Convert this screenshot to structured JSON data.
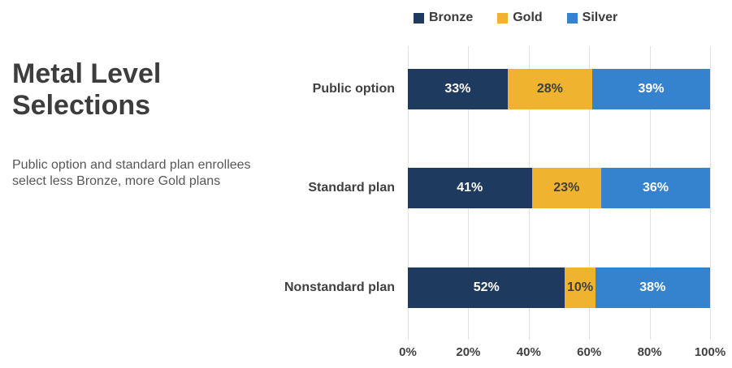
{
  "title": "Metal Level\nSelections",
  "subtitle": "Public option and standard plan enrollees select less Bronze, more Gold plans",
  "legend": {
    "items": [
      "Bronze",
      "Gold",
      "Silver"
    ]
  },
  "chart_data": {
    "type": "bar",
    "orientation": "horizontal",
    "stacked": true,
    "title": "Metal Level Selections",
    "subtitle": "Public option and standard plan enrollees select less Bronze, more Gold plans",
    "categories": [
      "Public option",
      "Standard plan",
      "Nonstandard plan"
    ],
    "series": [
      {
        "name": "Bronze",
        "color": "#1e3a5e",
        "label_color": "#ffffff",
        "values": [
          33,
          41,
          52
        ],
        "labels": [
          "33%",
          "41%",
          "52%"
        ]
      },
      {
        "name": "Gold",
        "color": "#efb32f",
        "label_color": "#3f3f3f",
        "values": [
          28,
          23,
          10
        ],
        "labels": [
          "28%",
          "23%",
          "10%"
        ]
      },
      {
        "name": "Silver",
        "color": "#3583ce",
        "label_color": "#ffffff",
        "values": [
          39,
          36,
          38
        ],
        "labels": [
          "39%",
          "36%",
          "38%"
        ]
      }
    ],
    "x_ticks": [
      "0%",
      "20%",
      "40%",
      "60%",
      "80%",
      "100%"
    ],
    "xlim": [
      0,
      100
    ],
    "grid": true,
    "legend_position": "top",
    "gridline_color": "#e2e2e2"
  }
}
